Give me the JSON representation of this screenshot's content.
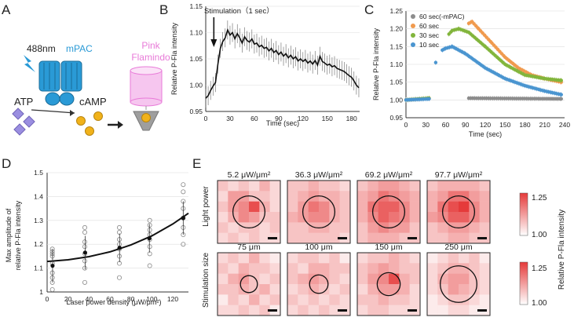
{
  "panels": {
    "A": "A",
    "B": "B",
    "C": "C",
    "D": "D",
    "E": "E"
  },
  "panel_a": {
    "laser": "488nm",
    "mpac": "mPAC",
    "atp": "ATP",
    "camp": "cAMP",
    "sensor_line1": "Pink",
    "sensor_line2": "Flamindo",
    "colors": {
      "mpac": "#2a9ad6",
      "sensor": "#e87ad8",
      "atp": "#9a8ee0",
      "camp": "#f1b21a"
    }
  },
  "chart_data": [
    {
      "id": "B",
      "type": "line",
      "title": "",
      "annotation": "Stimulation（1 sec）",
      "stim_time": 10,
      "xlabel": "Time (sec)",
      "ylabel": "Relative P-Fla intensity",
      "xlim": [
        0,
        190
      ],
      "ylim": [
        0.95,
        1.15
      ],
      "xticks": [
        "0",
        "30",
        "60",
        "90",
        "120",
        "150",
        "180"
      ],
      "yticks": [
        "0.95",
        "1.00",
        "1.05",
        "1.10",
        "1.15"
      ],
      "x": [
        0,
        3,
        6,
        9,
        12,
        15,
        18,
        21,
        24,
        27,
        30,
        33,
        36,
        39,
        42,
        45,
        48,
        51,
        54,
        57,
        60,
        63,
        66,
        69,
        72,
        75,
        78,
        81,
        84,
        87,
        90,
        93,
        96,
        99,
        102,
        105,
        108,
        111,
        114,
        117,
        120,
        123,
        126,
        129,
        132,
        135,
        138,
        141,
        144,
        147,
        150,
        153,
        156,
        159,
        162,
        165,
        168,
        171,
        174,
        177,
        180,
        183,
        186,
        189
      ],
      "y": [
        0.975,
        0.98,
        0.99,
        0.998,
        1.005,
        1.04,
        1.07,
        1.083,
        1.09,
        1.105,
        1.095,
        1.1,
        1.088,
        1.098,
        1.09,
        1.08,
        1.092,
        1.085,
        1.082,
        1.088,
        1.078,
        1.08,
        1.073,
        1.076,
        1.07,
        1.072,
        1.065,
        1.07,
        1.062,
        1.066,
        1.058,
        1.063,
        1.055,
        1.06,
        1.052,
        1.057,
        1.05,
        1.054,
        1.046,
        1.05,
        1.045,
        1.049,
        1.042,
        1.046,
        1.04,
        1.047,
        1.038,
        1.055,
        1.045,
        1.042,
        1.038,
        1.04,
        1.035,
        1.037,
        1.032,
        1.03,
        1.028,
        1.026,
        1.022,
        1.018,
        1.015,
        1.008,
        1.0,
        0.995
      ],
      "error": 0.018
    },
    {
      "id": "C",
      "type": "scatter",
      "xlabel": "Time (sec)",
      "ylabel": "Relative P-Fla intensity",
      "xlim": [
        0,
        240
      ],
      "ylim": [
        0.95,
        1.25
      ],
      "xticks": [
        "0",
        "30",
        "60",
        "90",
        "120",
        "150",
        "180",
        "210",
        "240"
      ],
      "yticks": [
        "0.95",
        "1.00",
        "1.05",
        "1.10",
        "1.15",
        "1.20",
        "1.25"
      ],
      "series": [
        {
          "name": "60 sec(-mPAC)",
          "color": "#8c8c8c",
          "segments": [
            [
              [
                0,
                1.0
              ],
              [
                35,
                1.004
              ]
            ],
            [
              [
                95,
                1.005
              ],
              [
                235,
                1.003
              ]
            ]
          ]
        },
        {
          "name": "60 sec",
          "color": "#f09a4e",
          "segments": [
            [
              [
                0,
                1.0
              ],
              [
                35,
                1.005
              ]
            ],
            [
              [
                95,
                1.215
              ],
              [
                100,
                1.22
              ],
              [
                110,
                1.2
              ],
              [
                130,
                1.16
              ],
              [
                150,
                1.12
              ],
              [
                170,
                1.09
              ],
              [
                190,
                1.07
              ],
              [
                210,
                1.06
              ],
              [
                235,
                1.05
              ]
            ]
          ]
        },
        {
          "name": "30 sec",
          "color": "#82b53c",
          "segments": [
            [
              [
                0,
                1.0
              ],
              [
                35,
                1.005
              ]
            ],
            [
              [
                65,
                1.185
              ],
              [
                70,
                1.195
              ],
              [
                80,
                1.2
              ],
              [
                95,
                1.19
              ],
              [
                120,
                1.15
              ],
              [
                150,
                1.1
              ],
              [
                180,
                1.07
              ],
              [
                210,
                1.06
              ],
              [
                235,
                1.055
              ]
            ]
          ]
        },
        {
          "name": "10 sec",
          "color": "#4a95d0",
          "segments": [
            [
              [
                0,
                1.0
              ],
              [
                35,
                1.003
              ]
            ],
            [
              [
                45,
                1.105
              ]
            ],
            [
              [
                55,
                1.14
              ],
              [
                60,
                1.145
              ],
              [
                70,
                1.15
              ],
              [
                90,
                1.13
              ],
              [
                120,
                1.09
              ],
              [
                150,
                1.06
              ],
              [
                180,
                1.04
              ],
              [
                210,
                1.025
              ],
              [
                235,
                1.015
              ]
            ]
          ]
        }
      ]
    },
    {
      "id": "D",
      "type": "scatter",
      "xlabel": "Laser power density (μW/μm²)",
      "ylabel_line1": "Max amplitude of",
      "ylabel_line2": "relative P-Fla intensity",
      "xlim": [
        0,
        135
      ],
      "ylim": [
        1.0,
        1.5
      ],
      "xticks": [
        "0",
        "20",
        "40",
        "60",
        "80",
        "100",
        "120"
      ],
      "yticks": [
        "1",
        "1.1",
        "1.2",
        "1.3",
        "1.4",
        "1.5"
      ],
      "means": [
        {
          "x": 5.2,
          "y": 1.11,
          "err": 0.07
        },
        {
          "x": 36.3,
          "y": 1.165,
          "err": 0.07
        },
        {
          "x": 69.2,
          "y": 1.185,
          "err": 0.06
        },
        {
          "x": 97.7,
          "y": 1.225,
          "err": 0.06
        },
        {
          "x": 130,
          "y": 1.31,
          "err": 0.07
        }
      ],
      "points": [
        [
          5,
          1.01
        ],
        [
          5,
          1.04
        ],
        [
          5,
          1.08
        ],
        [
          5,
          1.12
        ],
        [
          5,
          1.15
        ],
        [
          5,
          1.16
        ],
        [
          5,
          1.17
        ],
        [
          5,
          1.18
        ],
        [
          5,
          1.06
        ],
        [
          36,
          1.04
        ],
        [
          36,
          1.1
        ],
        [
          36,
          1.13
        ],
        [
          36,
          1.16
        ],
        [
          36,
          1.19
        ],
        [
          36,
          1.21
        ],
        [
          36,
          1.25
        ],
        [
          36,
          1.27
        ],
        [
          69,
          1.06
        ],
        [
          69,
          1.12
        ],
        [
          69,
          1.15
        ],
        [
          69,
          1.18
        ],
        [
          69,
          1.2
        ],
        [
          69,
          1.22
        ],
        [
          69,
          1.25
        ],
        [
          69,
          1.27
        ],
        [
          98,
          1.11
        ],
        [
          98,
          1.16
        ],
        [
          98,
          1.19
        ],
        [
          98,
          1.22
        ],
        [
          98,
          1.24
        ],
        [
          98,
          1.26
        ],
        [
          98,
          1.28
        ],
        [
          98,
          1.3
        ],
        [
          130,
          1.2
        ],
        [
          130,
          1.24
        ],
        [
          130,
          1.27
        ],
        [
          130,
          1.31
        ],
        [
          130,
          1.35
        ],
        [
          130,
          1.38
        ],
        [
          130,
          1.42
        ],
        [
          130,
          1.45
        ]
      ],
      "fit": [
        [
          0,
          1.128
        ],
        [
          20,
          1.135
        ],
        [
          40,
          1.148
        ],
        [
          60,
          1.168
        ],
        [
          80,
          1.197
        ],
        [
          100,
          1.235
        ],
        [
          120,
          1.285
        ],
        [
          135,
          1.33
        ]
      ]
    }
  ],
  "panel_e": {
    "row1_label": "Light power",
    "row2_label": "Stimulation size",
    "row1_titles": [
      "5.2 μW/μm²",
      "36.3 μW/μm²",
      "69.2 μW/μm²",
      "97.7 μW/μm²"
    ],
    "row2_titles": [
      "75 μm",
      "100 μm",
      "150 μm",
      "250 μm"
    ],
    "circle_sizes_row1": [
      0.3,
      0.3,
      0.3,
      0.3
    ],
    "circle_sizes_row2": [
      0.1,
      0.12,
      0.18,
      0.36
    ],
    "intensity_row1": [
      [
        [
          0.3,
          0.2,
          0.3,
          0.2,
          0.4,
          0.2
        ],
        [
          0.2,
          0.5,
          0.5,
          0.3,
          0.3,
          0.2
        ],
        [
          0.3,
          0.5,
          0.6,
          0.9,
          0.4,
          0.2
        ],
        [
          0.2,
          0.4,
          0.6,
          0.5,
          0.3,
          0.3
        ],
        [
          0.3,
          0.2,
          0.3,
          0.3,
          0.2,
          0.3
        ],
        [
          0.2,
          0.3,
          0.2,
          0.3,
          0.2,
          0.2
        ]
      ],
      [
        [
          0.3,
          0.3,
          0.4,
          0.3,
          0.3,
          0.2
        ],
        [
          0.3,
          0.4,
          0.5,
          0.4,
          0.4,
          0.3
        ],
        [
          0.3,
          0.5,
          0.7,
          0.6,
          0.4,
          0.3
        ],
        [
          0.4,
          0.5,
          0.6,
          0.6,
          0.4,
          0.3
        ],
        [
          0.3,
          0.3,
          0.4,
          0.4,
          0.3,
          0.3
        ],
        [
          0.3,
          0.3,
          0.3,
          0.3,
          0.3,
          0.2
        ]
      ],
      [
        [
          0.3,
          0.4,
          0.5,
          0.5,
          0.4,
          0.3
        ],
        [
          0.4,
          0.5,
          0.7,
          0.6,
          0.5,
          0.4
        ],
        [
          0.4,
          0.7,
          0.8,
          0.8,
          0.6,
          0.4
        ],
        [
          0.4,
          0.6,
          0.8,
          0.7,
          0.6,
          0.4
        ],
        [
          0.3,
          0.5,
          0.6,
          0.5,
          0.5,
          0.3
        ],
        [
          0.3,
          0.4,
          0.4,
          0.4,
          0.3,
          0.3
        ]
      ],
      [
        [
          0.3,
          0.4,
          0.4,
          0.4,
          0.4,
          0.3
        ],
        [
          0.4,
          0.5,
          0.7,
          0.7,
          0.5,
          0.4
        ],
        [
          0.4,
          0.7,
          0.9,
          1.0,
          0.6,
          0.4
        ],
        [
          0.5,
          0.6,
          0.8,
          0.8,
          0.6,
          0.4
        ],
        [
          0.3,
          0.4,
          0.5,
          0.5,
          0.4,
          0.3
        ],
        [
          0.3,
          0.3,
          0.4,
          0.4,
          0.3,
          0.3
        ]
      ]
    ],
    "intensity_row2": [
      [
        [
          0.2,
          0.3,
          0.2,
          0.4,
          0.2,
          0.1
        ],
        [
          0.3,
          0.2,
          0.4,
          0.3,
          0.3,
          0.2
        ],
        [
          0.2,
          0.4,
          0.5,
          0.3,
          0.2,
          0.3
        ],
        [
          0.3,
          0.3,
          0.4,
          0.3,
          0.4,
          0.2
        ],
        [
          0.1,
          0.3,
          0.2,
          0.4,
          0.2,
          0.3
        ],
        [
          0.2,
          0.2,
          0.3,
          0.2,
          0.3,
          0.1
        ]
      ],
      [
        [
          0.2,
          0.3,
          0.3,
          0.2,
          0.3,
          0.1
        ],
        [
          0.3,
          0.2,
          0.4,
          0.4,
          0.3,
          0.3
        ],
        [
          0.3,
          0.4,
          0.5,
          0.4,
          0.3,
          0.2
        ],
        [
          0.2,
          0.3,
          0.4,
          0.3,
          0.2,
          0.3
        ],
        [
          0.3,
          0.2,
          0.3,
          0.2,
          0.3,
          0.2
        ],
        [
          0.2,
          0.3,
          0.2,
          0.3,
          0.2,
          0.2
        ]
      ],
      [
        [
          0.2,
          0.3,
          0.3,
          0.4,
          0.3,
          0.2
        ],
        [
          0.3,
          0.4,
          0.5,
          0.4,
          0.3,
          0.3
        ],
        [
          0.3,
          0.5,
          0.6,
          0.9,
          0.4,
          0.3
        ],
        [
          0.2,
          0.4,
          0.5,
          0.5,
          0.4,
          0.2
        ],
        [
          0.3,
          0.3,
          0.4,
          0.3,
          0.3,
          0.2
        ],
        [
          0.2,
          0.3,
          0.3,
          0.2,
          0.2,
          0.2
        ]
      ],
      [
        [
          0.1,
          0.2,
          0.3,
          0.2,
          0.3,
          0.1
        ],
        [
          0.2,
          0.3,
          0.4,
          0.4,
          0.3,
          0.2
        ],
        [
          0.2,
          0.4,
          0.5,
          0.5,
          0.3,
          0.2
        ],
        [
          0.2,
          0.3,
          0.5,
          0.4,
          0.3,
          0.2
        ],
        [
          0.1,
          0.2,
          0.3,
          0.3,
          0.2,
          0.1
        ],
        [
          0.1,
          0.1,
          0.2,
          0.2,
          0.1,
          0.1
        ]
      ]
    ],
    "colorbar_max": "1.25",
    "colorbar_min": "1.00",
    "colorbar_label": "Relative P-Fla intensity",
    "colors": {
      "low": "#ffffff",
      "high": "#e53a3a"
    }
  }
}
